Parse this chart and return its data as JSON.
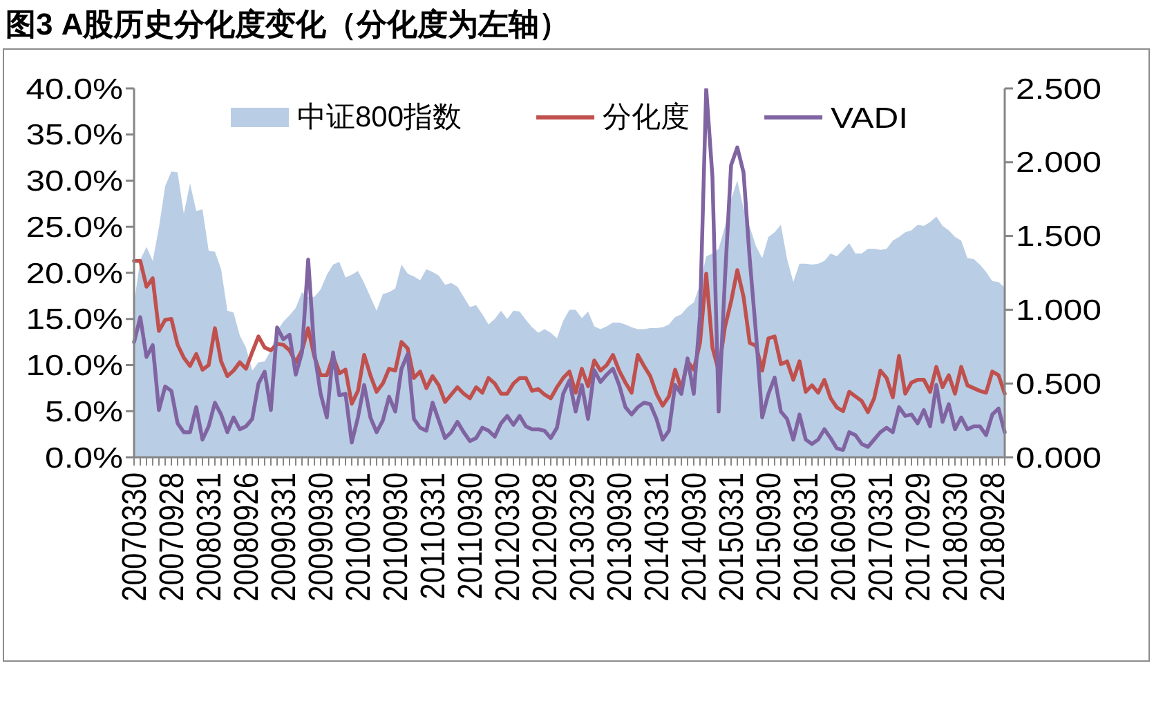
{
  "chart_data": {
    "type": "line",
    "title": "图3 A股历史分化度变化（分化度为左轴）",
    "categories": [
      "20070330",
      null,
      null,
      null,
      null,
      null,
      "20070928",
      null,
      null,
      null,
      null,
      null,
      "20080331",
      null,
      null,
      null,
      null,
      null,
      "20080926",
      null,
      null,
      null,
      null,
      null,
      "20090331",
      null,
      null,
      null,
      null,
      null,
      "20090930",
      null,
      null,
      null,
      null,
      null,
      "20100331",
      null,
      null,
      null,
      null,
      null,
      "20100930",
      null,
      null,
      null,
      null,
      null,
      "20110331",
      null,
      null,
      null,
      null,
      null,
      "20110930",
      null,
      null,
      null,
      null,
      null,
      "20120330",
      null,
      null,
      null,
      null,
      null,
      "20120928",
      null,
      null,
      null,
      null,
      null,
      "20130329",
      null,
      null,
      null,
      null,
      null,
      "20130930",
      null,
      null,
      null,
      null,
      null,
      "20140331",
      null,
      null,
      null,
      null,
      null,
      "20140930",
      null,
      null,
      null,
      null,
      null,
      "20150331",
      null,
      null,
      null,
      null,
      null,
      "20150930",
      null,
      null,
      null,
      null,
      null,
      "20160331",
      null,
      null,
      null,
      null,
      null,
      "20160930",
      null,
      null,
      null,
      null,
      null,
      "20170331",
      null,
      null,
      null,
      null,
      null,
      "20170929",
      null,
      null,
      null,
      null,
      null,
      "20180330",
      null,
      null,
      null,
      null,
      null,
      "20180928",
      null,
      null
    ],
    "series": [
      {
        "name": "中证800指数",
        "type": "area",
        "color": "#b9cde5",
        "values": [
          16.7,
          21.4,
          22.8,
          21.3,
          24.9,
          29.4,
          31.0,
          30.9,
          26.4,
          29.7,
          26.7,
          26.9,
          22.4,
          22.3,
          20.4,
          15.9,
          15.7,
          13.2,
          11.9,
          9.4,
          10.3,
          10.4,
          11.6,
          13.7,
          14.7,
          15.4,
          16.2,
          17.9,
          17.4,
          17.4,
          18.2,
          19.8,
          20.9,
          21.2,
          19.5,
          19.8,
          20.2,
          18.9,
          17.4,
          15.9,
          17.7,
          17.9,
          18.3,
          20.9,
          19.9,
          19.6,
          19.2,
          20.4,
          20.1,
          19.7,
          18.7,
          18.9,
          18.5,
          17.4,
          16.3,
          16.5,
          15.5,
          14.4,
          15.0,
          15.9,
          15.0,
          15.9,
          15.8,
          14.9,
          14.1,
          13.5,
          13.9,
          13.5,
          12.9,
          14.8,
          16.0,
          16.0,
          15.1,
          15.8,
          14.2,
          13.9,
          14.2,
          14.6,
          14.6,
          14.4,
          14.1,
          13.9,
          13.9,
          14.0,
          14.0,
          14.1,
          14.4,
          15.2,
          15.5,
          16.3,
          16.8,
          18.7,
          21.8,
          22.1,
          22.6,
          25.0,
          28.0,
          30.0,
          27.0,
          25.0,
          22.9,
          21.6,
          23.9,
          24.4,
          25.2,
          21.5,
          19.0,
          21.0,
          21.0,
          20.9,
          21.0,
          21.3,
          22.1,
          21.8,
          22.5,
          23.2,
          22.1,
          22.1,
          22.6,
          22.6,
          22.5,
          22.6,
          23.5,
          23.9,
          24.4,
          24.6,
          25.2,
          25.1,
          25.5,
          26.1,
          25.1,
          24.6,
          23.9,
          23.5,
          21.6,
          21.5,
          20.9,
          20.1,
          19.1,
          19.0,
          18.4
        ]
      },
      {
        "name": "分化度",
        "type": "line",
        "color": "#c0504d",
        "values": [
          21.3,
          21.3,
          18.5,
          19.4,
          13.7,
          14.9,
          15.0,
          12.2,
          10.8,
          9.9,
          11.2,
          9.5,
          10.0,
          14.0,
          10.4,
          8.8,
          9.4,
          10.3,
          9.6,
          11.4,
          13.1,
          11.9,
          11.6,
          12.3,
          12.2,
          11.6,
          10.3,
          11.6,
          14.0,
          10.9,
          8.9,
          8.9,
          10.9,
          9.1,
          9.5,
          5.8,
          7.2,
          11.1,
          8.9,
          7.1,
          8.0,
          9.6,
          9.4,
          12.5,
          11.8,
          8.6,
          9.3,
          7.5,
          8.8,
          7.8,
          6.0,
          6.8,
          7.6,
          6.9,
          6.4,
          7.6,
          7.0,
          8.6,
          8.0,
          6.9,
          6.9,
          8.0,
          8.6,
          8.6,
          7.2,
          7.4,
          6.8,
          6.4,
          7.6,
          8.6,
          9.3,
          7.0,
          9.6,
          7.7,
          10.5,
          9.4,
          10.0,
          11.1,
          9.4,
          8.1,
          7.0,
          11.1,
          9.9,
          8.8,
          6.9,
          5.6,
          6.6,
          9.5,
          7.4,
          10.4,
          9.5,
          12.4,
          19.9,
          11.9,
          9.4,
          14.1,
          16.9,
          20.3,
          17.4,
          12.4,
          12.1,
          9.4,
          12.9,
          13.1,
          10.1,
          10.4,
          8.4,
          10.4,
          7.1,
          7.8,
          7.0,
          8.4,
          6.4,
          5.4,
          5.0,
          7.1,
          6.6,
          6.1,
          4.9,
          6.4,
          9.4,
          8.6,
          6.5,
          11.0,
          6.9,
          8.1,
          8.4,
          8.4,
          7.1,
          9.8,
          7.6,
          8.9,
          6.9,
          9.8,
          7.8,
          7.5,
          7.2,
          7.0,
          9.3,
          8.9,
          6.9
        ]
      },
      {
        "name": "VADI",
        "type": "line",
        "axis": "y2",
        "color": "#8064a2",
        "values": [
          0.78,
          0.95,
          0.68,
          0.76,
          0.32,
          0.48,
          0.45,
          0.23,
          0.17,
          0.17,
          0.34,
          0.12,
          0.21,
          0.37,
          0.29,
          0.17,
          0.27,
          0.19,
          0.21,
          0.26,
          0.5,
          0.58,
          0.32,
          0.88,
          0.8,
          0.83,
          0.56,
          0.71,
          1.34,
          0.71,
          0.43,
          0.27,
          0.71,
          0.42,
          0.43,
          0.1,
          0.27,
          0.49,
          0.27,
          0.17,
          0.25,
          0.41,
          0.31,
          0.6,
          0.7,
          0.26,
          0.2,
          0.18,
          0.37,
          0.25,
          0.13,
          0.17,
          0.24,
          0.17,
          0.11,
          0.13,
          0.2,
          0.18,
          0.14,
          0.23,
          0.28,
          0.22,
          0.28,
          0.21,
          0.19,
          0.19,
          0.18,
          0.13,
          0.2,
          0.43,
          0.52,
          0.31,
          0.49,
          0.26,
          0.59,
          0.51,
          0.56,
          0.6,
          0.49,
          0.34,
          0.29,
          0.34,
          0.37,
          0.36,
          0.26,
          0.12,
          0.18,
          0.49,
          0.43,
          0.67,
          0.43,
          0.96,
          2.5,
          1.9,
          0.31,
          1.2,
          1.98,
          2.1,
          1.93,
          1.34,
          0.84,
          0.27,
          0.43,
          0.54,
          0.31,
          0.26,
          0.12,
          0.29,
          0.12,
          0.09,
          0.12,
          0.19,
          0.13,
          0.06,
          0.05,
          0.17,
          0.15,
          0.09,
          0.07,
          0.12,
          0.17,
          0.2,
          0.17,
          0.34,
          0.28,
          0.29,
          0.23,
          0.32,
          0.21,
          0.49,
          0.24,
          0.36,
          0.19,
          0.27,
          0.19,
          0.21,
          0.21,
          0.15,
          0.29,
          0.33,
          0.17
        ]
      }
    ],
    "ylim": [
      0,
      40
    ],
    "yticks": [
      {
        "value": 0,
        "label": "0.0%"
      },
      {
        "value": 5,
        "label": "5.0%"
      },
      {
        "value": 10,
        "label": "10.0%"
      },
      {
        "value": 15,
        "label": "15.0%"
      },
      {
        "value": 20,
        "label": "20.0%"
      },
      {
        "value": 25,
        "label": "25.0%"
      },
      {
        "value": 30,
        "label": "30.0%"
      },
      {
        "value": 35,
        "label": "35.0%"
      },
      {
        "value": 40,
        "label": "40.0%"
      }
    ],
    "y2lim": [
      0,
      2.5
    ],
    "y2ticks": [
      {
        "value": 0,
        "label": "0.000"
      },
      {
        "value": 0.5,
        "label": "0.500"
      },
      {
        "value": 1,
        "label": "1.000"
      },
      {
        "value": 1.5,
        "label": "1.500"
      },
      {
        "value": 2,
        "label": "2.000"
      },
      {
        "value": 2.5,
        "label": "2.500"
      }
    ],
    "legend": "top"
  }
}
